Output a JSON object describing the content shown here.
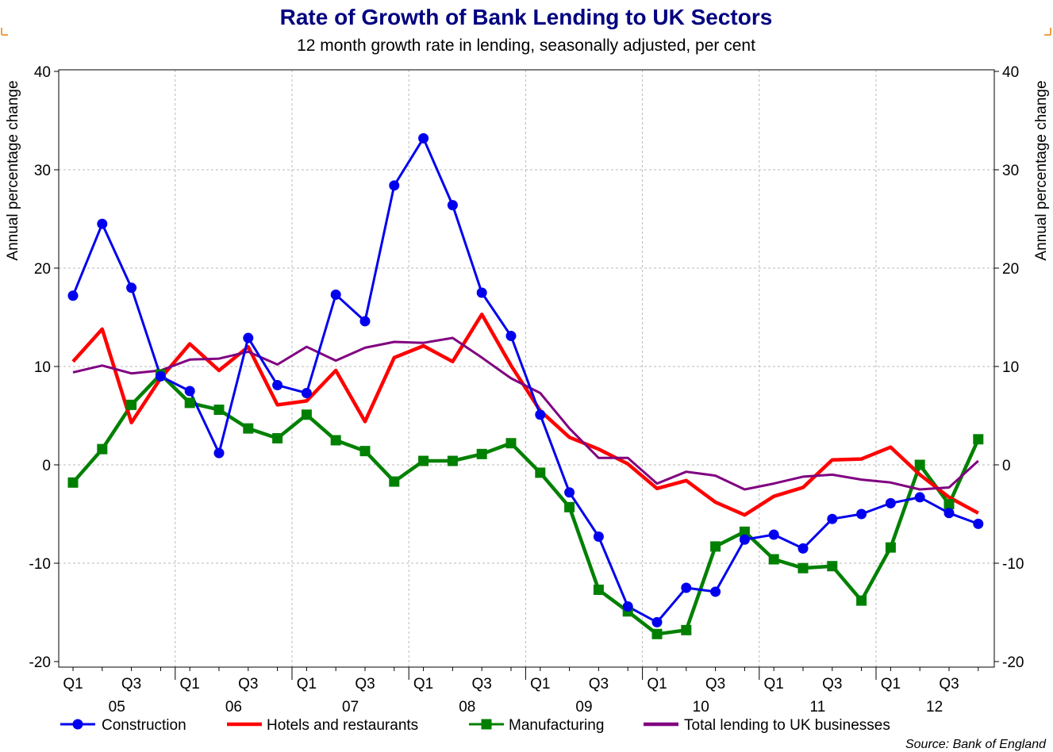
{
  "chart_data": {
    "type": "line",
    "title": "Rate of Growth of Bank Lending to UK Sectors",
    "subtitle": "12 month growth rate in lending, seasonally adjusted, per cent",
    "ylabel_left": "Annual percentage change",
    "ylabel_right": "Annual percentage change",
    "ylim": [
      -20,
      40
    ],
    "yticks": [
      -20,
      -10,
      0,
      10,
      20,
      30,
      40
    ],
    "ytick_labels": [
      "-20",
      "-10",
      "0",
      "10",
      "20",
      "30",
      "40"
    ],
    "grid": true,
    "x": [
      "2005 Q1",
      "2005 Q2",
      "2005 Q3",
      "2005 Q4",
      "2006 Q1",
      "2006 Q2",
      "2006 Q3",
      "2006 Q4",
      "2007 Q1",
      "2007 Q2",
      "2007 Q3",
      "2007 Q4",
      "2008 Q1",
      "2008 Q2",
      "2008 Q3",
      "2008 Q4",
      "2009 Q1",
      "2009 Q2",
      "2009 Q3",
      "2009 Q4",
      "2010 Q1",
      "2010 Q2",
      "2010 Q3",
      "2010 Q4",
      "2011 Q1",
      "2011 Q2",
      "2011 Q3",
      "2011 Q4",
      "2012 Q1",
      "2012 Q2",
      "2012 Q3",
      "2012 Q4"
    ],
    "quarter_labels": [
      {
        "index": 0,
        "label": "Q1"
      },
      {
        "index": 2,
        "label": "Q3"
      },
      {
        "index": 4,
        "label": "Q1"
      },
      {
        "index": 6,
        "label": "Q3"
      },
      {
        "index": 8,
        "label": "Q1"
      },
      {
        "index": 10,
        "label": "Q3"
      },
      {
        "index": 12,
        "label": "Q1"
      },
      {
        "index": 14,
        "label": "Q3"
      },
      {
        "index": 16,
        "label": "Q1"
      },
      {
        "index": 18,
        "label": "Q3"
      },
      {
        "index": 20,
        "label": "Q1"
      },
      {
        "index": 22,
        "label": "Q3"
      },
      {
        "index": 24,
        "label": "Q1"
      },
      {
        "index": 26,
        "label": "Q3"
      },
      {
        "index": 28,
        "label": "Q1"
      },
      {
        "index": 30,
        "label": "Q3"
      }
    ],
    "year_labels": [
      "05",
      "06",
      "07",
      "08",
      "09",
      "10",
      "11",
      "12"
    ],
    "series": [
      {
        "name": "Construction",
        "color": "#0000ee",
        "marker": "circle",
        "values": [
          17.2,
          24.5,
          18.0,
          9.0,
          7.5,
          1.2,
          12.9,
          8.1,
          7.3,
          17.3,
          14.6,
          28.4,
          33.2,
          26.4,
          17.5,
          13.1,
          5.1,
          -2.8,
          -7.3,
          -14.4,
          -16.0,
          -12.5,
          -12.9,
          -7.6,
          -7.1,
          -8.5,
          -5.5,
          -5.0,
          -3.9,
          -3.3,
          -4.9,
          -6.0
        ]
      },
      {
        "name": "Hotels and restaurants",
        "color": "#ff0000",
        "marker": "none",
        "values": [
          10.5,
          13.8,
          4.3,
          8.8,
          12.3,
          9.6,
          12.0,
          6.1,
          6.5,
          9.6,
          4.4,
          10.9,
          12.1,
          10.5,
          15.3,
          10.1,
          5.5,
          2.8,
          1.6,
          0.1,
          -2.4,
          -1.6,
          -3.8,
          -5.1,
          -3.2,
          -2.3,
          0.5,
          0.6,
          1.8,
          -1.0,
          -3.3,
          -4.9
        ]
      },
      {
        "name": "Manufacturing",
        "color": "#008000",
        "marker": "square",
        "values": [
          -1.8,
          1.6,
          6.1,
          9.2,
          6.3,
          5.6,
          3.7,
          2.7,
          5.1,
          2.5,
          1.4,
          -1.7,
          0.4,
          0.4,
          1.1,
          2.2,
          -0.8,
          -4.3,
          -12.7,
          -14.9,
          -17.2,
          -16.8,
          -8.3,
          -6.8,
          -9.6,
          -10.5,
          -10.3,
          -13.8,
          -8.4,
          0.0,
          -4.0,
          2.6
        ]
      },
      {
        "name": "Total lending to UK businesses",
        "color": "#800080",
        "marker": "none",
        "values": [
          9.4,
          10.1,
          9.3,
          9.6,
          10.7,
          10.8,
          11.5,
          10.2,
          12.0,
          10.6,
          11.9,
          12.5,
          12.4,
          12.9,
          10.9,
          8.8,
          7.3,
          3.7,
          0.7,
          0.7,
          -1.9,
          -0.7,
          -1.1,
          -2.5,
          -1.9,
          -1.2,
          -1.0,
          -1.5,
          -1.8,
          -2.5,
          -2.3,
          0.4
        ]
      }
    ],
    "legend_position": "bottom",
    "source": "Source: Bank of England"
  }
}
